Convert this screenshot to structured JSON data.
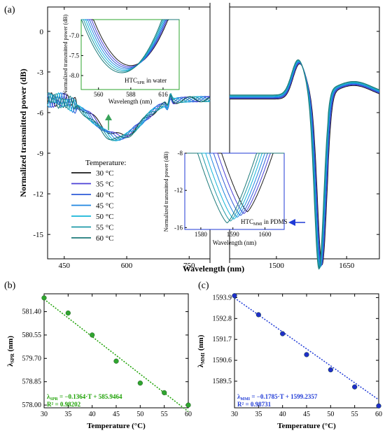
{
  "panel_a": {
    "label": "(a)",
    "ylabel": "Normalized transmitted power (dB)",
    "xlabel": "Wavelength (nm)",
    "legend_title": "Temperature:",
    "legend": [
      "30 °C",
      "35 °C",
      "40 °C",
      "45 °C",
      "50 °C",
      "55 °C",
      "60 °C"
    ],
    "inset_spr": {
      "ylabel": "Normalized transmitted power (dB)",
      "xlabel": "Wavelength (nm)",
      "note_main": "HTC",
      "note_sub": "SPR",
      "note_rest": " in water",
      "xticks": [
        "560",
        "588",
        "616"
      ],
      "yticks": [
        "-7.0",
        "-7.5",
        "-8.0"
      ]
    },
    "inset_mmi": {
      "ylabel": "Normalized transmitted power (dB)",
      "xlabel": "Wavelength (nm)",
      "note_main": "HTC",
      "note_sub": "MMI",
      "note_rest": " in PDMS",
      "xticks": [
        "1580",
        "1590",
        "1600"
      ],
      "yticks": [
        "-8",
        "-12",
        "-16"
      ]
    }
  },
  "panel_b": {
    "label": "(b)",
    "ylabel_main": "λ",
    "ylabel_sub": "SPR",
    "ylabel_rest": " (nm)",
    "xlabel": "Temperature (°C)",
    "fit_main": "λ",
    "fit_sub": "SPR",
    "fit_rest": " = −0.1364·T + 585.9464",
    "r2_label": "R² = 0.98202"
  },
  "panel_c": {
    "label": "(c)",
    "ylabel_main": "λ",
    "ylabel_sub": "MMI",
    "ylabel_rest": " (nm)",
    "xlabel": "Temperature (°C)",
    "fit_main": "λ",
    "fit_sub": "MMI",
    "fit_rest": " = −0.1785·T + 1599.2357",
    "r2_label": "R² = 0.98731"
  },
  "colors": {
    "series": [
      "#1a1a1a",
      "#4a3fd6",
      "#2e5bd8",
      "#1f86e0",
      "#14b4d8",
      "#1f9aa8",
      "#1c7a7a"
    ],
    "fit_green": "#1aa000",
    "point_green": "#2fa52f",
    "fit_blue": "#1f3ad6",
    "point_blue": "#1f2fc8",
    "arrow_green": "#3aa35a",
    "arrow_blue": "#1f3ad6",
    "inset_spr_frame": "#2fa52f",
    "inset_mmi_frame": "#1f3ad6"
  },
  "chart_data": [
    {
      "type": "line",
      "panel": "a",
      "x_segments": [
        [
          410,
          800
        ],
        [
          1400,
          1720
        ]
      ],
      "ylim": [
        -16.8,
        1.8
      ],
      "xticks": [
        450,
        600,
        750,
        1500,
        1650
      ],
      "yticks": [
        0,
        -3,
        -6,
        -9,
        -12,
        -15
      ],
      "series": [
        {
          "name": "30 °C",
          "spr_dip_nm": 584.8,
          "spr_dip_db": -7.7,
          "mmi_dip_nm": 1594.5,
          "mmi_dip_db": -16.3
        },
        {
          "name": "35 °C",
          "spr_dip_nm": 583.9,
          "spr_dip_db": -7.75,
          "mmi_dip_nm": 1593.2,
          "mmi_dip_db": -16.4
        },
        {
          "name": "40 °C",
          "spr_dip_nm": 580.4,
          "spr_dip_db": -7.8,
          "mmi_dip_nm": 1592.2,
          "mmi_dip_db": -16.5
        },
        {
          "name": "45 °C",
          "spr_dip_nm": 579.8,
          "spr_dip_db": -7.85,
          "mmi_dip_nm": 1590.9,
          "mmi_dip_db": -16.6
        },
        {
          "name": "50 °C",
          "spr_dip_nm": 578.8,
          "spr_dip_db": -7.9,
          "mmi_dip_nm": 1590.0,
          "mmi_dip_db": -16.7
        },
        {
          "name": "55 °C",
          "spr_dip_nm": 578.5,
          "spr_dip_db": -7.95,
          "mmi_dip_nm": 1589.0,
          "mmi_dip_db": -16.8
        },
        {
          "name": "60 °C",
          "spr_dip_nm": 577.9,
          "spr_dip_db": -8.0,
          "mmi_dip_nm": 1587.9,
          "mmi_dip_db": -16.9
        }
      ]
    },
    {
      "type": "scatter",
      "panel": "b",
      "x": [
        30,
        35,
        40,
        45,
        50,
        55,
        60
      ],
      "y": [
        581.9,
        581.35,
        580.55,
        579.6,
        578.8,
        578.45,
        578.0
      ],
      "xlim": [
        30,
        60
      ],
      "ylim": [
        577.9,
        582.05
      ],
      "xticks": [
        30,
        35,
        40,
        45,
        50,
        55,
        60
      ],
      "yticks": [
        578.0,
        578.85,
        579.7,
        580.55,
        581.4
      ],
      "ytick_labels": [
        "578.00",
        "578.85",
        "579.70",
        "580.55",
        "581.40"
      ],
      "fit": {
        "slope": -0.1364,
        "intercept": 585.9464
      }
    },
    {
      "type": "scatter",
      "panel": "c",
      "x": [
        30,
        35,
        40,
        45,
        50,
        55,
        60
      ],
      "y": [
        1594.0,
        1593.0,
        1592.0,
        1590.9,
        1590.1,
        1589.2,
        1588.2
      ],
      "xlim": [
        30,
        60
      ],
      "ylim": [
        1588.1,
        1594.1
      ],
      "xticks": [
        30,
        35,
        40,
        45,
        50,
        55,
        60
      ],
      "yticks": [
        1589.5,
        1590.6,
        1591.7,
        1592.8,
        1593.9
      ],
      "ytick_labels": [
        "1589.5",
        "1590.6",
        "1591.7",
        "1592.8",
        "1593.9"
      ],
      "fit": {
        "slope": -0.1785,
        "intercept": 1599.2357
      }
    }
  ]
}
